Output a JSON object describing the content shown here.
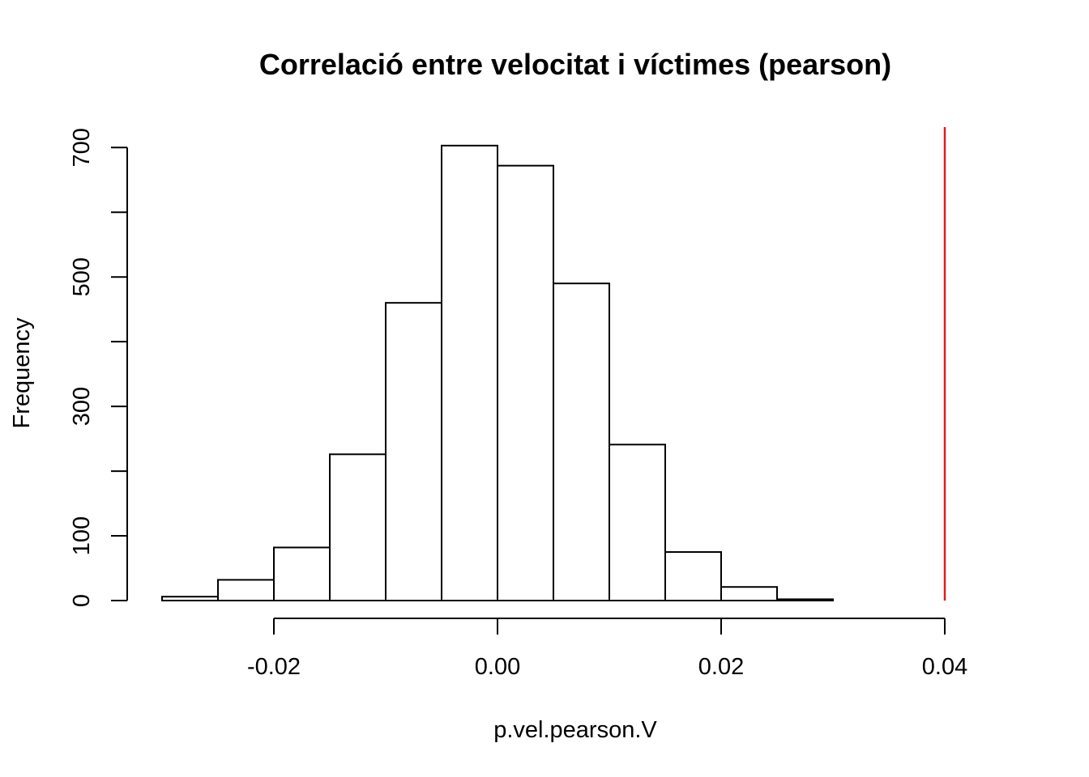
{
  "chart_data": {
    "type": "bar",
    "title": "Correlació entre velocitat i víctimes (pearson)",
    "xlabel": "p.vel.pearson.V",
    "ylabel": "Frequency",
    "bins": [
      {
        "from": -0.03,
        "to": -0.025,
        "count": 6
      },
      {
        "from": -0.025,
        "to": -0.02,
        "count": 32
      },
      {
        "from": -0.02,
        "to": -0.015,
        "count": 82
      },
      {
        "from": -0.015,
        "to": -0.01,
        "count": 226
      },
      {
        "from": -0.01,
        "to": -0.005,
        "count": 460
      },
      {
        "from": -0.005,
        "to": 0.0,
        "count": 703
      },
      {
        "from": 0.0,
        "to": 0.005,
        "count": 672
      },
      {
        "from": 0.005,
        "to": 0.01,
        "count": 490
      },
      {
        "from": 0.01,
        "to": 0.015,
        "count": 241
      },
      {
        "from": 0.015,
        "to": 0.02,
        "count": 75
      },
      {
        "from": 0.02,
        "to": 0.025,
        "count": 21
      },
      {
        "from": 0.025,
        "to": 0.03,
        "count": 2
      }
    ],
    "xlim": [
      -0.03,
      0.04
    ],
    "ylim": [
      0,
      700
    ],
    "x_ticks": [
      "-0.02",
      "0.00",
      "0.02",
      "0.04"
    ],
    "y_ticks": [
      "0",
      "100",
      "300",
      "500",
      "700"
    ],
    "y_minor_ticks": [
      200,
      400,
      600
    ],
    "reference_line": {
      "x": 0.04,
      "color": "#e31a1c"
    },
    "bar_fill": "#ffffff",
    "bar_stroke": "#000000",
    "grid": false,
    "legend": "none"
  }
}
